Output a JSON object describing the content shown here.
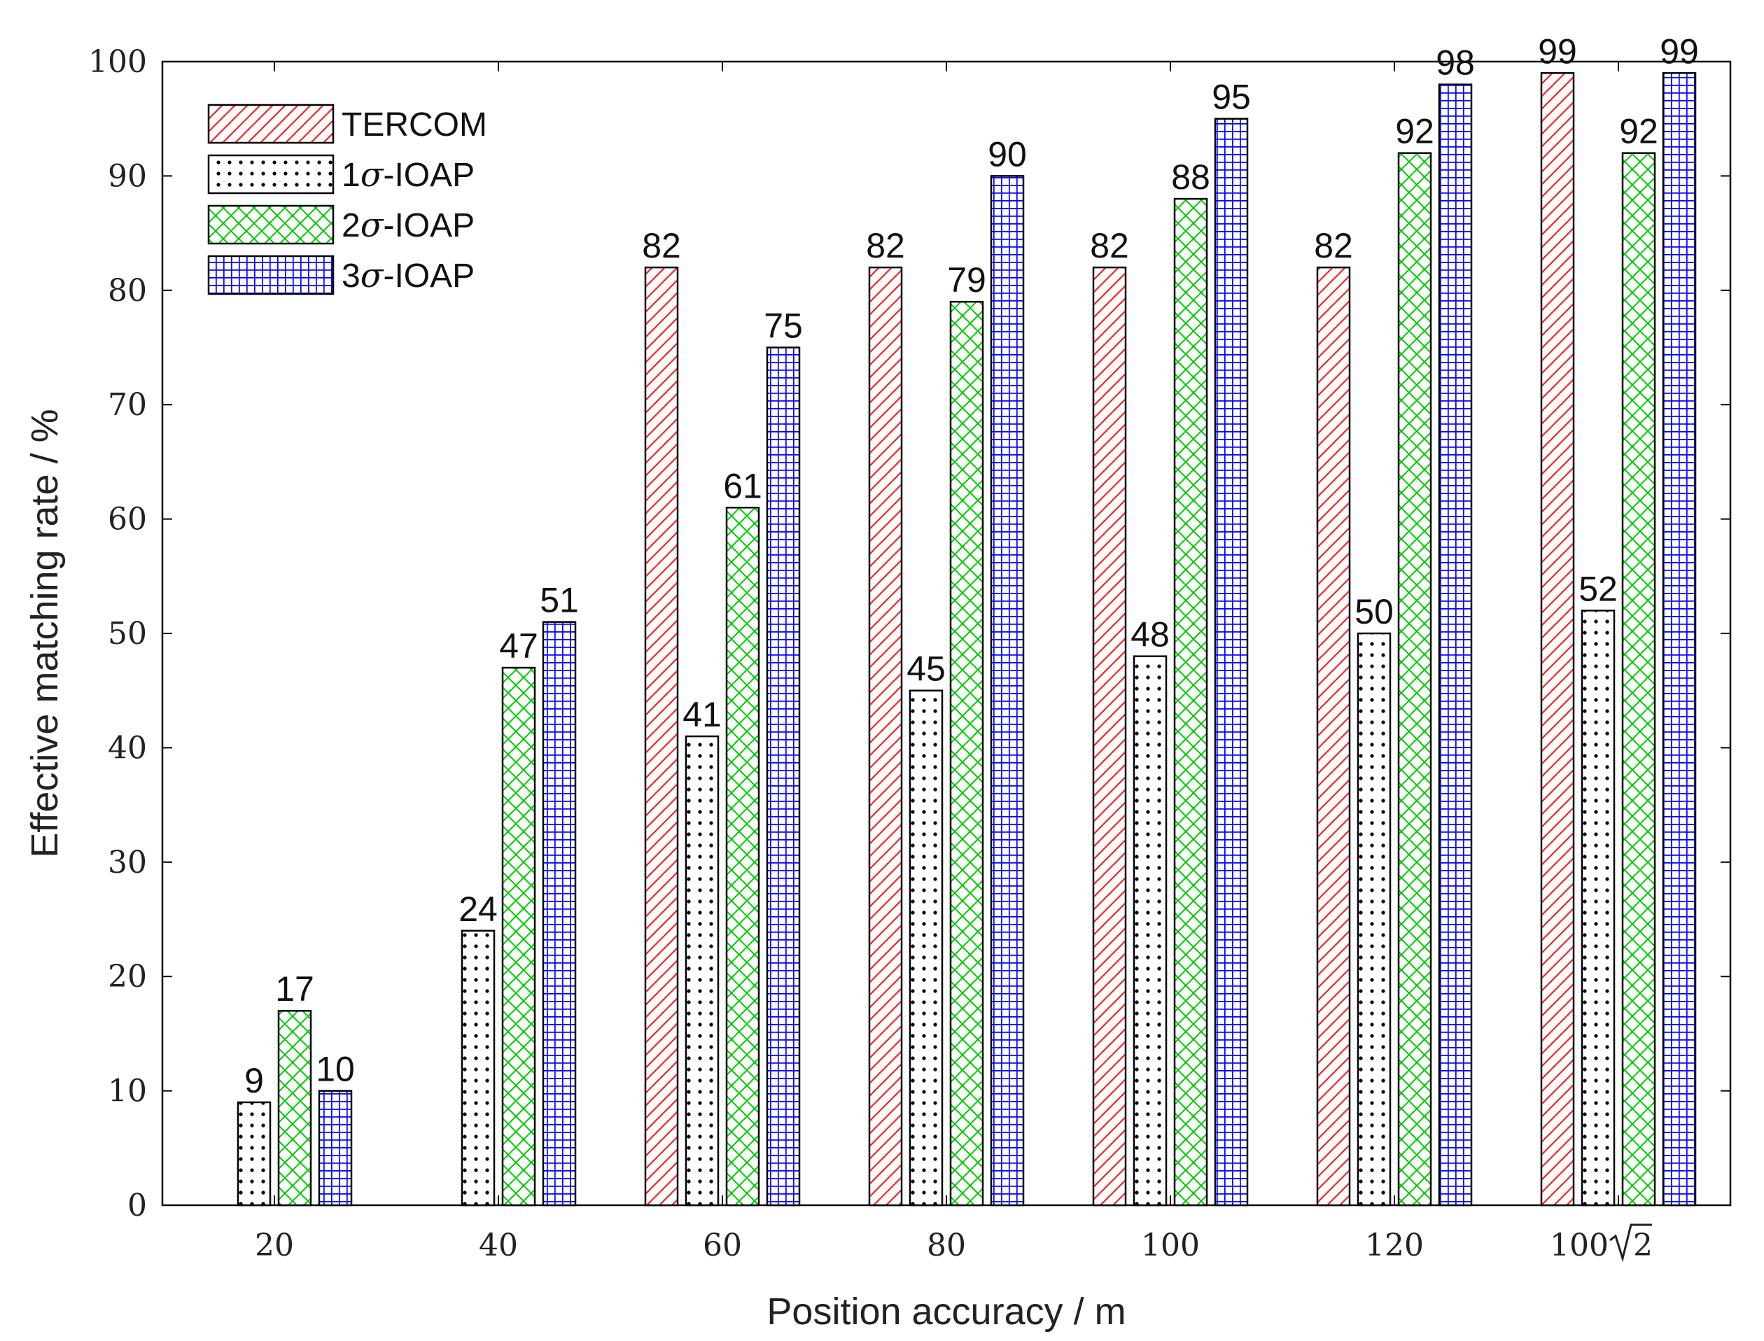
{
  "chart_data": {
    "type": "bar",
    "title": "",
    "xlabel": "Position accuracy / m",
    "ylabel": "Effective matching rate / %",
    "categories": [
      "20",
      "40",
      "60",
      "80",
      "100",
      "120",
      "100√2"
    ],
    "category_display": [
      {
        "text": "20",
        "sqrt": ""
      },
      {
        "text": "40",
        "sqrt": ""
      },
      {
        "text": "60",
        "sqrt": ""
      },
      {
        "text": "80",
        "sqrt": ""
      },
      {
        "text": "100",
        "sqrt": ""
      },
      {
        "text": "120",
        "sqrt": ""
      },
      {
        "text": "100",
        "sqrt": "2"
      }
    ],
    "ylim": [
      0,
      100
    ],
    "yticks": [
      0,
      10,
      20,
      30,
      40,
      50,
      60,
      70,
      80,
      90,
      100
    ],
    "grid": false,
    "legend_position": "top-left",
    "series": [
      {
        "name": "TERCOM",
        "legend_prefix": "",
        "legend_symbol": "",
        "legend_suffix": "TERCOM",
        "pattern": "diagonal-hatch",
        "color": "#ff2020",
        "values": [
          null,
          null,
          82,
          82,
          82,
          82,
          99
        ]
      },
      {
        "name": "1σ-IOAP",
        "legend_prefix": "1",
        "legend_symbol": "σ",
        "legend_suffix": "-IOAP",
        "pattern": "dots",
        "color": "#000000",
        "values": [
          9,
          24,
          41,
          45,
          48,
          50,
          52
        ]
      },
      {
        "name": "2σ-IOAP",
        "legend_prefix": "2",
        "legend_symbol": "σ",
        "legend_suffix": "-IOAP",
        "pattern": "cross-hatch",
        "color": "#00cc00",
        "values": [
          17,
          47,
          61,
          79,
          88,
          92,
          92
        ]
      },
      {
        "name": "3σ-IOAP",
        "legend_prefix": "3",
        "legend_symbol": "σ",
        "legend_suffix": "-IOAP",
        "pattern": "grid",
        "color": "#0000ff",
        "values": [
          10,
          51,
          75,
          90,
          95,
          98,
          99
        ]
      }
    ]
  }
}
